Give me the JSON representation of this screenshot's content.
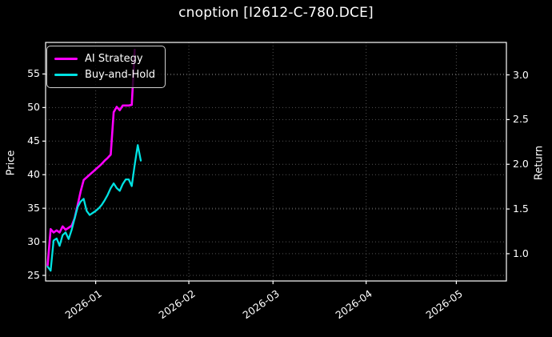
{
  "title": "cnoption [I2612-C-780.DCE]",
  "legend": {
    "items": [
      {
        "label": "AI Strategy",
        "color": "#ff00ff"
      },
      {
        "label": "Buy-and-Hold",
        "color": "#00e2e2"
      }
    ]
  },
  "axes": {
    "left": {
      "label": "Price",
      "tick_labels": [
        "25",
        "30",
        "35",
        "40",
        "45",
        "50",
        "55"
      ]
    },
    "right": {
      "label": "Return",
      "tick_labels": [
        "1.0",
        "1.5",
        "2.0",
        "2.5",
        "3.0"
      ]
    },
    "bottom": {
      "tick_labels": [
        "2026-01",
        "2026-02",
        "2026-03",
        "2026-04",
        "2026-05"
      ]
    }
  },
  "colors": {
    "background": "#000000",
    "text": "#ffffff",
    "grid": "#545454",
    "spine": "#ffffff",
    "ai_strategy": "#ff00ff",
    "buy_and_hold": "#00e2e2"
  },
  "chart_data": {
    "type": "line",
    "title": "cnoption [I2612-C-780.DCE]",
    "background": "#000000",
    "grid": true,
    "legend_position": "upper left",
    "x_axis": {
      "kind": "date",
      "range": [
        "2025-12-15T08:00:00Z",
        "2026-05-17T16:00:00Z"
      ],
      "tick_dates": [
        "2026-01-01",
        "2026-02-01",
        "2026-03-01",
        "2026-04-01",
        "2026-05-01"
      ],
      "tick_labels": [
        "2026-01",
        "2026-02",
        "2026-03",
        "2026-04",
        "2026-05"
      ]
    },
    "y_left": {
      "label": "Price",
      "range": [
        24.17,
        59.7
      ],
      "ticks": [
        25,
        30,
        35,
        40,
        45,
        50,
        55
      ]
    },
    "y_right": {
      "label": "Return",
      "range": [
        0.695,
        3.363
      ],
      "ticks": [
        1.0,
        1.5,
        2.0,
        2.5,
        3.0
      ]
    },
    "series": [
      {
        "name": "AI Strategy",
        "color": "#ff00ff",
        "axis": "left",
        "line_width": 2.6,
        "points": [
          [
            "2025-12-16",
            26.5
          ],
          [
            "2025-12-17",
            31.9
          ],
          [
            "2025-12-18",
            31.4
          ],
          [
            "2025-12-19",
            31.7
          ],
          [
            "2025-12-20",
            31.4
          ],
          [
            "2025-12-21",
            32.3
          ],
          [
            "2025-12-22",
            31.8
          ],
          [
            "2025-12-23",
            32.1
          ],
          [
            "2025-12-24",
            32.4
          ],
          [
            "2025-12-25",
            33.5
          ],
          [
            "2025-12-26",
            35.5
          ],
          [
            "2025-12-27",
            37.5
          ],
          [
            "2025-12-28",
            39.2
          ],
          [
            "2025-12-29",
            39.6
          ],
          [
            "2025-12-30",
            40.0
          ],
          [
            "2025-12-31",
            40.4
          ],
          [
            "2026-01-01",
            40.8
          ],
          [
            "2026-01-02",
            41.2
          ],
          [
            "2026-01-03",
            41.6
          ],
          [
            "2026-01-04",
            42.1
          ],
          [
            "2026-01-05",
            42.5
          ],
          [
            "2026-01-06",
            43.0
          ],
          [
            "2026-01-07",
            49.3
          ],
          [
            "2026-01-08",
            50.1
          ],
          [
            "2026-01-09",
            49.6
          ],
          [
            "2026-01-10",
            50.3
          ],
          [
            "2026-01-11",
            50.3
          ],
          [
            "2026-01-12",
            50.3
          ],
          [
            "2026-01-13",
            50.4
          ],
          [
            "2026-01-14",
            58.6
          ]
        ]
      },
      {
        "name": "Buy-and-Hold",
        "color": "#00e2e2",
        "axis": "left",
        "line_width": 2.3,
        "points": [
          [
            "2025-12-16",
            26.3
          ],
          [
            "2025-12-17",
            25.7
          ],
          [
            "2025-12-18",
            30.2
          ],
          [
            "2025-12-19",
            30.5
          ],
          [
            "2025-12-20",
            29.4
          ],
          [
            "2025-12-21",
            31.0
          ],
          [
            "2025-12-22",
            31.4
          ],
          [
            "2025-12-23",
            30.4
          ],
          [
            "2025-12-24",
            31.8
          ],
          [
            "2025-12-25",
            33.5
          ],
          [
            "2025-12-26",
            35.2
          ],
          [
            "2025-12-27",
            36.0
          ],
          [
            "2025-12-28",
            36.4
          ],
          [
            "2025-12-29",
            34.6
          ],
          [
            "2025-12-30",
            34.0
          ],
          [
            "2025-12-31",
            34.3
          ],
          [
            "2026-01-01",
            34.6
          ],
          [
            "2026-01-02",
            35.0
          ],
          [
            "2026-01-03",
            35.5
          ],
          [
            "2026-01-04",
            36.2
          ],
          [
            "2026-01-05",
            37.0
          ],
          [
            "2026-01-06",
            38.0
          ],
          [
            "2026-01-07",
            38.7
          ],
          [
            "2026-01-08",
            38.0
          ],
          [
            "2026-01-09",
            37.6
          ],
          [
            "2026-01-10",
            38.6
          ],
          [
            "2026-01-11",
            39.3
          ],
          [
            "2026-01-12",
            39.3
          ],
          [
            "2026-01-13",
            38.3
          ],
          [
            "2026-01-14",
            41.5
          ],
          [
            "2026-01-15",
            44.4
          ],
          [
            "2026-01-16",
            42.1
          ]
        ]
      }
    ]
  }
}
